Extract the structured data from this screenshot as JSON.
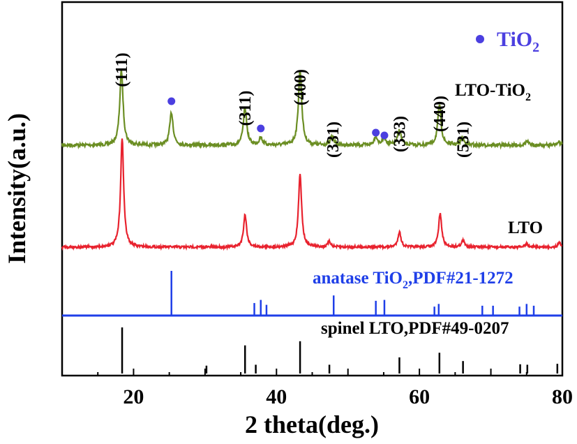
{
  "chart_data": {
    "type": "line",
    "title": "",
    "xlabel": "2 theta(deg.)",
    "ylabel": "Intensity(a.u.)",
    "xlim": [
      10,
      80
    ],
    "x_ticks": [
      20,
      40,
      60,
      80
    ],
    "grid": false,
    "legend": {
      "position": "top-right",
      "marker_label": "TiO",
      "marker_label_sub": "2",
      "marker_color": "#4b3fe0"
    },
    "series": [
      {
        "name": "LTO-TiO2",
        "label_text": "LTO-TiO",
        "label_sub": "2",
        "color": "#6b8e23",
        "baseline": 0.0,
        "peaks": [
          [
            18.3,
            1.0
          ],
          [
            25.3,
            0.44
          ],
          [
            35.6,
            0.5
          ],
          [
            37.8,
            0.1
          ],
          [
            43.3,
            1.0
          ],
          [
            47.8,
            0.12
          ],
          [
            53.9,
            0.12
          ],
          [
            55.1,
            0.1
          ],
          [
            57.2,
            0.2
          ],
          [
            62.8,
            0.54
          ],
          [
            66.0,
            0.1
          ],
          [
            75.0,
            0.05
          ],
          [
            79.5,
            0.04
          ]
        ]
      },
      {
        "name": "LTO",
        "label_text": "LTO",
        "color": "#e8222e",
        "peaks": [
          [
            18.4,
            1.0
          ],
          [
            35.6,
            0.3
          ],
          [
            43.3,
            0.68
          ],
          [
            47.4,
            0.05
          ],
          [
            57.2,
            0.14
          ],
          [
            62.9,
            0.31
          ],
          [
            66.1,
            0.06
          ],
          [
            75.0,
            0.03
          ],
          [
            79.6,
            0.04
          ]
        ]
      }
    ],
    "reference_patterns": [
      {
        "name": "anatase TiO2,PDF#21-1272",
        "label_text": "anatase TiO",
        "label_sub": "2",
        "label_rest": ",PDF#21-1272",
        "color": "#1f3fe8",
        "lines": [
          [
            25.3,
            1.0
          ],
          [
            36.9,
            0.28
          ],
          [
            37.8,
            0.35
          ],
          [
            38.6,
            0.24
          ],
          [
            48.0,
            0.45
          ],
          [
            53.9,
            0.33
          ],
          [
            55.1,
            0.35
          ],
          [
            62.1,
            0.2
          ],
          [
            62.7,
            0.26
          ],
          [
            68.8,
            0.22
          ],
          [
            70.3,
            0.22
          ],
          [
            74.0,
            0.2
          ],
          [
            75.0,
            0.26
          ],
          [
            76.0,
            0.22
          ]
        ]
      },
      {
        "name": "spinel LTO,PDF#49-0207",
        "label_text": "spinel LTO,PDF#49-0207",
        "color": "#000000",
        "lines": [
          [
            18.4,
            1.0
          ],
          [
            30.2,
            0.17
          ],
          [
            35.6,
            0.61
          ],
          [
            37.1,
            0.19
          ],
          [
            43.3,
            0.7
          ],
          [
            47.4,
            0.19
          ],
          [
            57.2,
            0.35
          ],
          [
            62.8,
            0.45
          ],
          [
            66.1,
            0.27
          ],
          [
            74.1,
            0.2
          ],
          [
            75.1,
            0.19
          ],
          [
            79.3,
            0.21
          ]
        ]
      }
    ],
    "peak_labels": [
      {
        "text": "(111)",
        "x": 18.3
      },
      {
        "text": "(311)",
        "x": 35.6
      },
      {
        "text": "(400)",
        "x": 43.3
      },
      {
        "text": "(331)",
        "x": 47.9
      },
      {
        "text": "(333)",
        "x": 57.2
      },
      {
        "text": "(440)",
        "x": 62.8
      },
      {
        "text": "(531)",
        "x": 66.1
      }
    ],
    "tio2_markers": [
      25.3,
      37.8,
      53.9,
      55.1
    ]
  }
}
